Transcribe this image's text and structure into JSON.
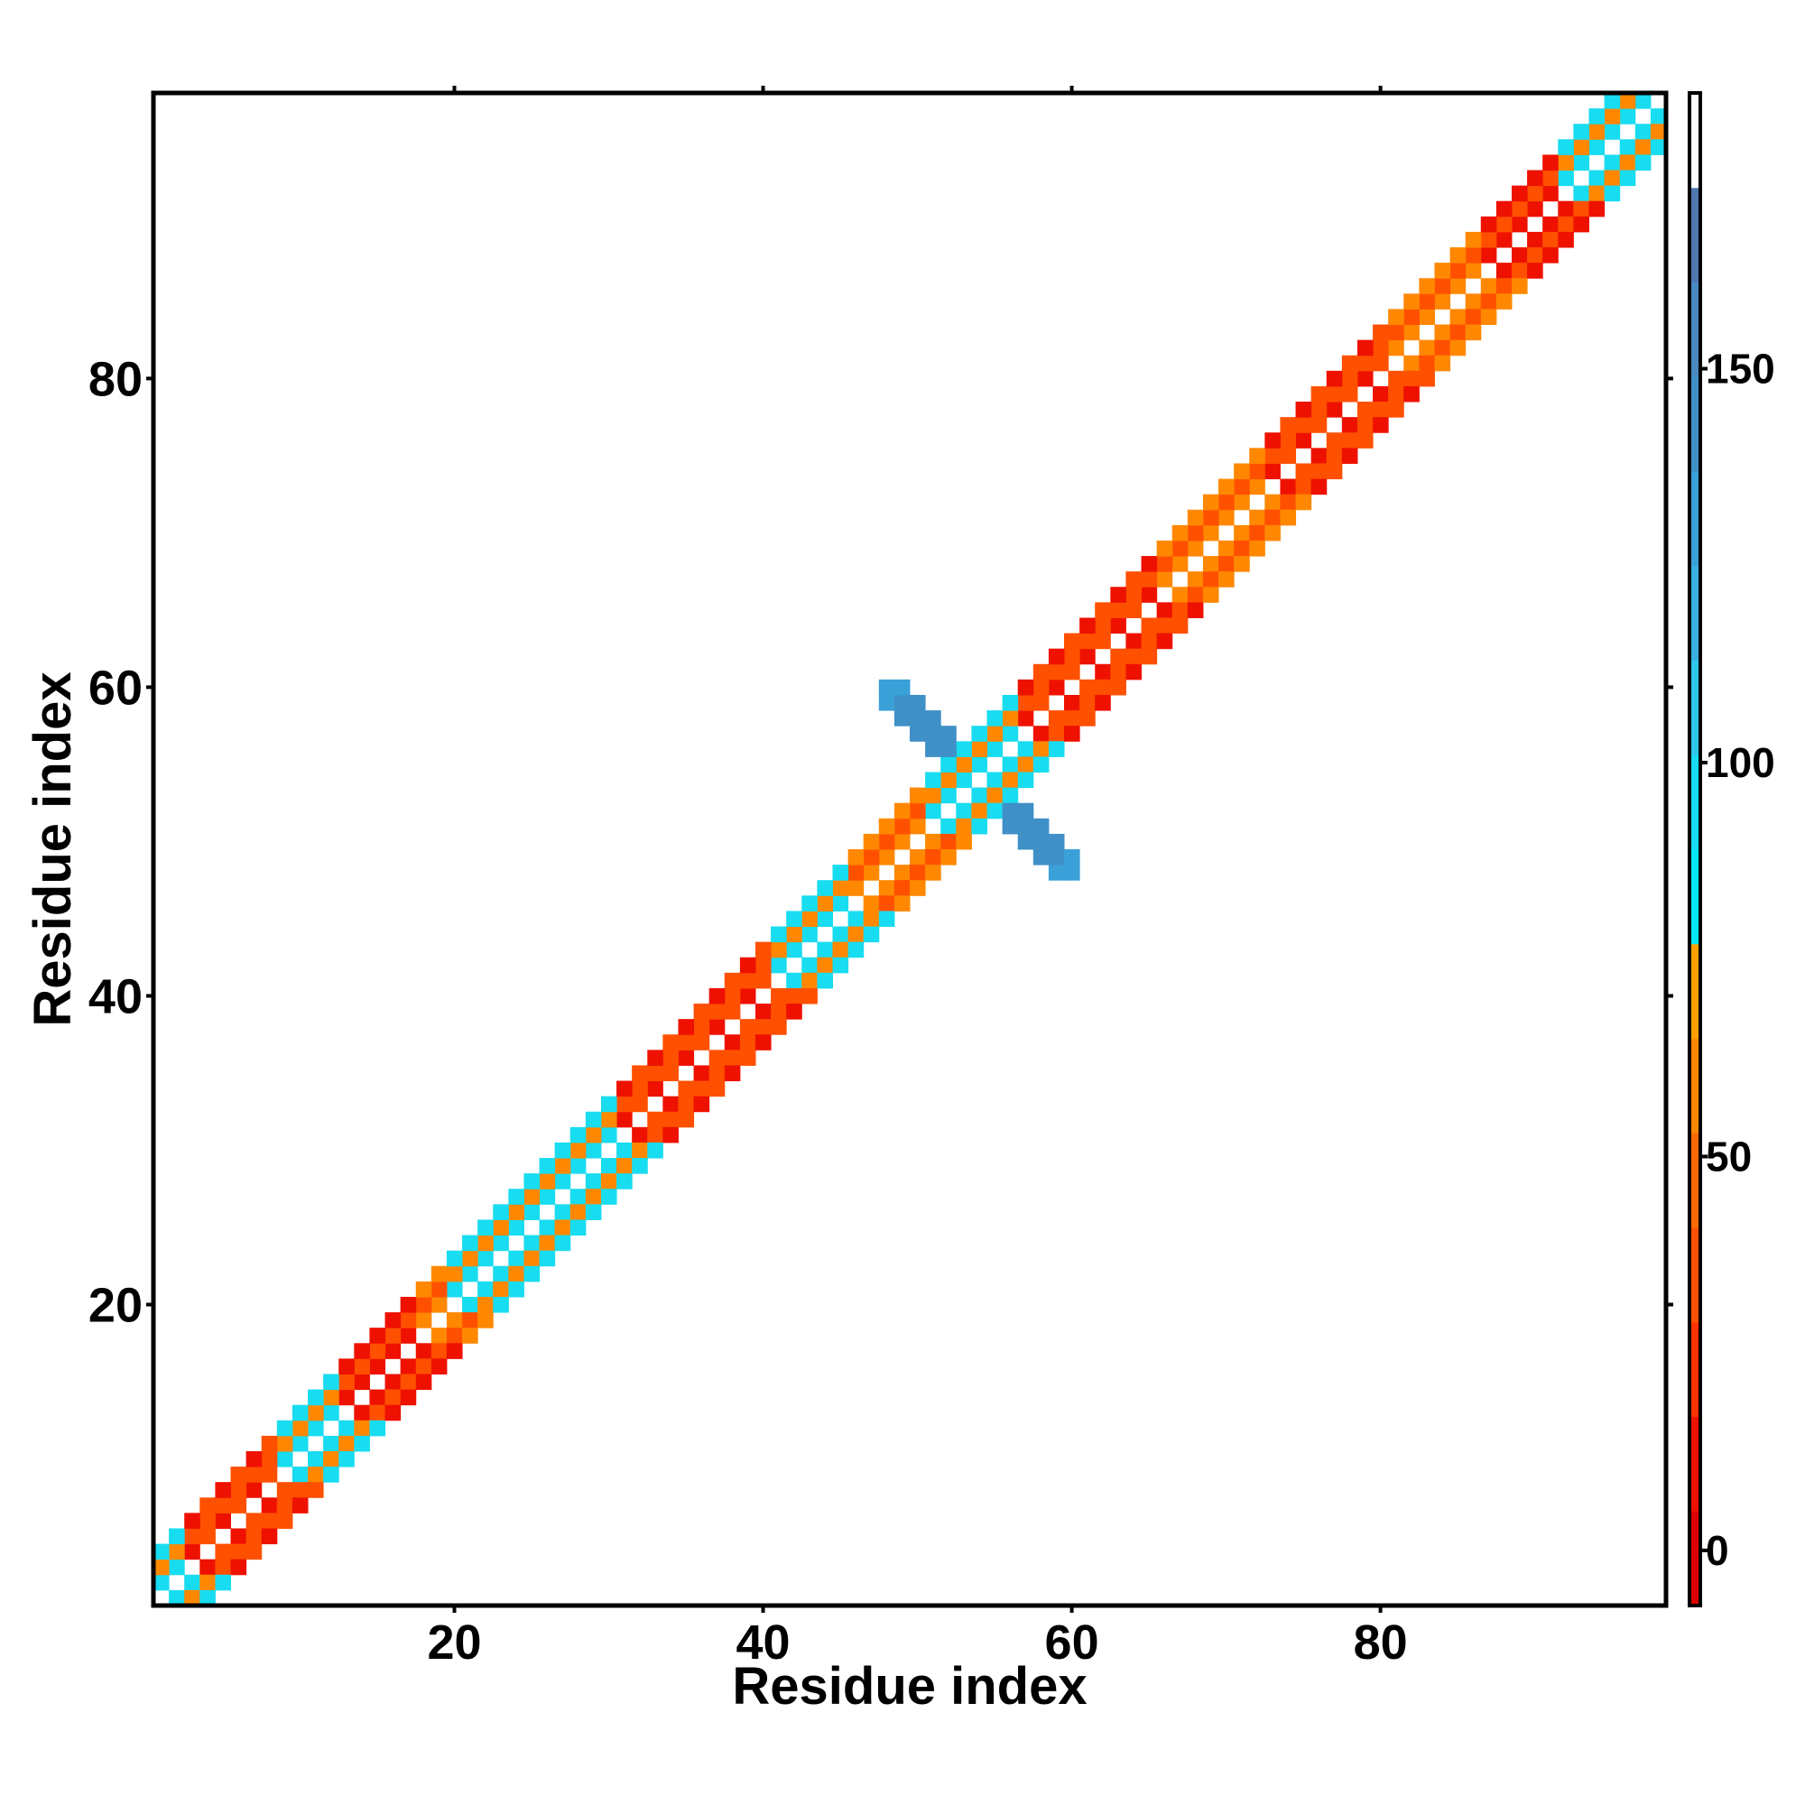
{
  "chart_data": {
    "type": "heatmap",
    "x_label": "Residue index",
    "y_label": "Residue index",
    "xlim": [
      0.5,
      98.5
    ],
    "ylim": [
      0.5,
      98.5
    ],
    "xticks": [
      20,
      40,
      60,
      80
    ],
    "yticks": [
      20,
      40,
      60,
      80
    ],
    "clim": [
      -7,
      185
    ],
    "cticks": [
      0,
      50,
      100,
      150
    ],
    "colorscale": [
      "#dd0000",
      "#ee1100",
      "#ff3300",
      "#ff5000",
      "#ff6a00",
      "#ff8800",
      "#ffa000",
      "#00e8f8",
      "#18dcf0",
      "#30c8e8",
      "#38b0e0",
      "#3aa0d8",
      "#4090c8",
      "#4a88c0",
      "#5078b0",
      "#ffffff"
    ],
    "symmetric": true,
    "x": [
      1,
      2,
      3,
      4,
      5,
      6,
      7,
      8,
      9,
      10,
      11,
      12,
      13,
      14,
      15,
      16,
      17,
      18,
      19,
      20,
      21,
      22,
      23,
      24,
      25,
      26,
      27,
      28,
      29,
      30,
      31,
      32,
      33,
      34,
      35,
      36,
      37,
      38,
      39,
      40,
      41,
      42,
      43,
      44,
      45,
      46,
      47,
      48,
      49,
      50,
      51,
      52,
      53,
      54,
      55,
      56,
      57,
      58,
      59,
      60,
      61,
      62,
      63,
      64,
      65,
      66,
      67,
      68,
      69,
      70,
      71,
      72,
      73,
      74,
      75,
      76,
      77,
      78,
      79,
      80,
      81,
      82,
      83,
      84,
      85,
      86,
      87,
      88,
      89,
      90,
      91,
      92,
      93,
      94,
      95,
      96,
      97,
      1,
      2,
      3,
      4,
      5,
      6,
      7,
      8,
      9,
      10,
      11,
      12,
      13,
      14,
      15,
      16,
      17,
      18,
      19,
      20,
      21,
      22,
      23,
      24,
      25,
      26,
      27,
      28,
      29,
      30,
      31,
      32,
      33,
      34,
      35,
      36,
      37,
      38,
      39,
      40,
      41,
      42,
      43,
      44,
      45,
      46,
      47,
      48,
      49,
      50,
      51,
      52,
      53,
      54,
      55,
      56,
      57,
      58,
      59,
      60,
      61,
      62,
      63,
      64,
      65,
      66,
      67,
      68,
      69,
      70,
      71,
      72,
      73,
      74,
      75,
      76,
      77,
      78,
      79,
      80,
      81,
      82,
      83,
      84,
      85,
      86,
      87,
      88,
      89,
      90,
      91,
      92,
      93,
      94,
      95,
      96,
      1,
      2,
      3,
      4,
      5,
      6,
      7,
      8,
      9,
      10,
      11,
      12,
      13,
      14,
      15,
      16,
      17,
      18,
      19,
      20,
      21,
      22,
      23,
      24,
      25,
      26,
      27,
      28,
      29,
      30,
      31,
      32,
      33,
      34,
      35,
      36,
      37,
      38,
      39,
      40,
      41,
      42,
      43,
      44,
      45,
      46,
      47,
      48,
      49,
      50,
      51,
      52,
      53,
      54,
      55,
      56,
      57,
      58,
      59,
      60,
      61,
      62,
      63,
      64,
      65,
      66,
      67,
      68,
      69,
      70,
      71,
      72,
      73,
      74,
      75,
      76,
      77,
      78,
      79,
      80,
      81,
      82,
      83,
      84,
      85,
      86,
      87,
      88,
      89,
      90,
      91,
      92,
      93,
      94,
      95,
      48,
      48,
      49,
      49,
      49,
      50,
      50,
      50,
      51,
      51,
      51,
      52,
      52
    ],
    "y": [
      2,
      3,
      4,
      5,
      6,
      7,
      8,
      9,
      10,
      11,
      12,
      13,
      14,
      15,
      16,
      17,
      18,
      19,
      20,
      21,
      22,
      23,
      24,
      25,
      26,
      27,
      28,
      29,
      30,
      31,
      32,
      33,
      34,
      35,
      36,
      37,
      38,
      39,
      40,
      41,
      42,
      43,
      44,
      45,
      46,
      47,
      48,
      49,
      50,
      51,
      52,
      53,
      54,
      55,
      56,
      57,
      58,
      59,
      60,
      61,
      62,
      63,
      64,
      65,
      66,
      67,
      68,
      69,
      70,
      71,
      72,
      73,
      74,
      75,
      76,
      77,
      78,
      79,
      80,
      81,
      82,
      83,
      84,
      85,
      86,
      87,
      88,
      89,
      90,
      91,
      92,
      93,
      94,
      95,
      96,
      97,
      98,
      3,
      4,
      5,
      6,
      7,
      8,
      9,
      10,
      11,
      12,
      13,
      14,
      15,
      16,
      17,
      18,
      19,
      20,
      21,
      22,
      23,
      24,
      25,
      26,
      27,
      28,
      29,
      30,
      31,
      32,
      33,
      34,
      35,
      36,
      37,
      38,
      39,
      40,
      41,
      42,
      43,
      44,
      45,
      46,
      47,
      48,
      49,
      50,
      51,
      52,
      53,
      54,
      55,
      56,
      57,
      58,
      59,
      60,
      61,
      62,
      63,
      64,
      65,
      66,
      67,
      68,
      69,
      70,
      71,
      72,
      73,
      74,
      75,
      76,
      77,
      78,
      79,
      80,
      81,
      82,
      83,
      84,
      85,
      86,
      87,
      88,
      89,
      90,
      91,
      92,
      93,
      94,
      95,
      96,
      97,
      98,
      4,
      5,
      6,
      7,
      8,
      9,
      10,
      11,
      12,
      13,
      14,
      15,
      16,
      17,
      18,
      19,
      20,
      21,
      22,
      23,
      24,
      25,
      26,
      27,
      28,
      29,
      30,
      31,
      32,
      33,
      34,
      35,
      36,
      37,
      38,
      39,
      40,
      41,
      42,
      43,
      44,
      45,
      46,
      47,
      48,
      49,
      50,
      51,
      52,
      53,
      54,
      55,
      56,
      57,
      58,
      59,
      60,
      61,
      62,
      63,
      64,
      65,
      66,
      67,
      68,
      69,
      70,
      71,
      72,
      73,
      74,
      75,
      76,
      77,
      78,
      79,
      80,
      81,
      82,
      83,
      84,
      85,
      86,
      87,
      88,
      89,
      90,
      91,
      92,
      93,
      94,
      95,
      96,
      97,
      98,
      59,
      60,
      58,
      59,
      60,
      57,
      58,
      59,
      56,
      57,
      58,
      56,
      57
    ],
    "values": [
      95,
      95,
      10,
      35,
      10,
      35,
      10,
      35,
      95,
      95,
      95,
      95,
      10,
      10,
      10,
      10,
      10,
      60,
      60,
      95,
      95,
      95,
      95,
      95,
      95,
      95,
      95,
      95,
      95,
      95,
      10,
      35,
      10,
      35,
      10,
      35,
      10,
      35,
      10,
      35,
      95,
      95,
      95,
      95,
      95,
      60,
      60,
      60,
      60,
      60,
      95,
      95,
      95,
      95,
      95,
      95,
      10,
      35,
      10,
      35,
      10,
      35,
      10,
      35,
      10,
      60,
      60,
      60,
      60,
      60,
      60,
      60,
      10,
      35,
      10,
      35,
      10,
      35,
      10,
      35,
      60,
      60,
      60,
      60,
      60,
      60,
      10,
      10,
      10,
      10,
      10,
      95,
      95,
      95,
      95,
      95,
      95,
      60,
      60,
      35,
      35,
      35,
      35,
      35,
      35,
      60,
      60,
      60,
      60,
      35,
      35,
      35,
      35,
      35,
      35,
      35,
      60,
      60,
      60,
      60,
      60,
      60,
      60,
      60,
      60,
      60,
      60,
      35,
      35,
      35,
      35,
      35,
      35,
      35,
      35,
      35,
      35,
      60,
      60,
      60,
      60,
      60,
      35,
      35,
      35,
      35,
      35,
      60,
      60,
      60,
      60,
      60,
      60,
      35,
      35,
      35,
      35,
      35,
      35,
      35,
      35,
      35,
      35,
      35,
      35,
      35,
      35,
      35,
      35,
      35,
      35,
      35,
      35,
      35,
      35,
      35,
      35,
      35,
      35,
      35,
      35,
      35,
      35,
      35,
      35,
      35,
      35,
      35,
      60,
      60,
      60,
      60,
      60,
      95,
      95,
      10,
      35,
      10,
      35,
      10,
      35,
      95,
      95,
      95,
      95,
      10,
      10,
      10,
      10,
      10,
      60,
      60,
      95,
      95,
      95,
      95,
      95,
      95,
      95,
      95,
      95,
      95,
      95,
      10,
      35,
      10,
      35,
      10,
      35,
      10,
      35,
      10,
      35,
      95,
      95,
      95,
      95,
      95,
      60,
      60,
      60,
      60,
      60,
      95,
      95,
      95,
      95,
      95,
      95,
      10,
      35,
      10,
      35,
      10,
      35,
      10,
      35,
      10,
      60,
      60,
      60,
      60,
      60,
      60,
      60,
      10,
      35,
      10,
      35,
      10,
      35,
      10,
      35,
      60,
      60,
      60,
      60,
      60,
      60,
      10,
      10,
      10,
      10,
      10,
      95,
      95,
      95,
      95,
      130,
      130,
      140,
      140,
      130,
      140,
      140,
      140,
      140,
      140,
      140,
      140,
      140
    ]
  }
}
